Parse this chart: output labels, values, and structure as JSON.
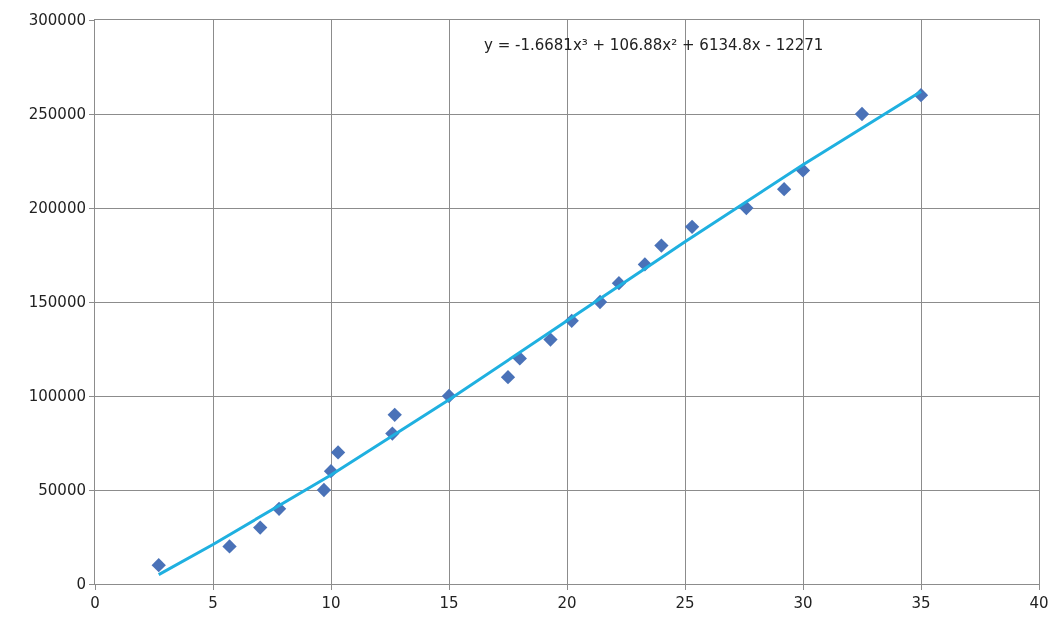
{
  "chart_data": {
    "type": "scatter",
    "xlim": [
      0,
      40
    ],
    "xticks": [
      0,
      5,
      10,
      15,
      20,
      25,
      30,
      35,
      40
    ],
    "ylim": [
      0,
      300000
    ],
    "yticks": [
      0,
      50000,
      100000,
      150000,
      200000,
      250000,
      300000
    ],
    "grid": true,
    "marker": "diamond",
    "annotations": [
      "y = -1.6681x³ + 106.88x² + 6134.8x - 12271"
    ],
    "series": [
      {
        "color": "#4a72b8",
        "x": [
          2.7,
          5.7,
          7,
          7.8,
          9.7,
          10,
          10.3,
          12.6,
          12.7,
          15,
          17.5,
          18,
          19.3,
          20.2,
          21.4,
          22.2,
          23.3,
          24,
          25.3,
          27.6,
          29.2,
          30,
          32.5,
          35
        ],
        "values": [
          10000,
          20000,
          30000,
          40000,
          50000,
          60000,
          70000,
          80000,
          90000,
          100000,
          110000,
          120000,
          130000,
          140000,
          150000,
          160000,
          170000,
          180000,
          190000,
          200000,
          210000,
          220000,
          250000,
          260000
        ]
      },
      {
        "type": "line",
        "color": "#1fb0e0",
        "marker": "none",
        "x": [
          2.7,
          5,
          10,
          15,
          20,
          25,
          30,
          35
        ],
        "values": [
          5000,
          21000,
          58000,
          98000,
          140000,
          182000,
          223000,
          262000
        ]
      }
    ]
  }
}
